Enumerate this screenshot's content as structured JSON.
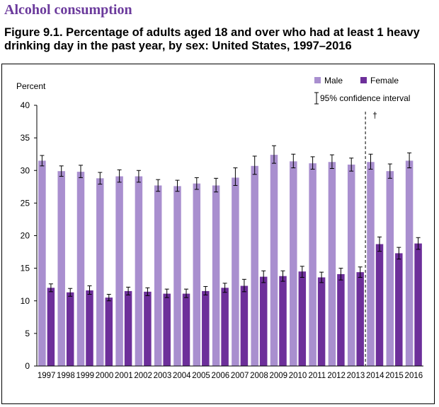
{
  "section_title": "Alcohol consumption",
  "figure_title": "Figure 9.1. Percentage of adults aged 18 and over who had at least 1 heavy drinking day in the past year, by sex: United States, 1997–2016",
  "chart_data": {
    "type": "bar",
    "ylabel": "Percent",
    "ylim": [
      0,
      40
    ],
    "yticks": [
      0,
      5,
      10,
      15,
      20,
      25,
      30,
      35,
      40
    ],
    "grid": false,
    "legend_position": "top-right",
    "categories": [
      "1997",
      "1998",
      "1999",
      "2000",
      "2001",
      "2002",
      "2003",
      "2004",
      "2005",
      "2006",
      "2007",
      "2008",
      "2009",
      "2010",
      "2011",
      "2012",
      "2013",
      "2014",
      "2015",
      "2016"
    ],
    "series": [
      {
        "name": "Male",
        "color": "#a98fcf",
        "values": [
          31.5,
          29.9,
          29.8,
          28.8,
          29.1,
          29.1,
          27.7,
          27.6,
          28.0,
          27.7,
          28.9,
          30.7,
          32.4,
          31.4,
          31.1,
          31.3,
          30.9,
          31.3,
          29.9,
          31.5
        ],
        "ci_low": [
          30.7,
          29.1,
          28.9,
          27.9,
          28.2,
          28.2,
          26.8,
          26.8,
          27.1,
          26.7,
          27.7,
          29.4,
          31.1,
          30.4,
          30.2,
          30.3,
          29.9,
          30.2,
          28.8,
          30.4
        ],
        "ci_high": [
          32.3,
          30.7,
          30.8,
          29.7,
          30.1,
          30.0,
          28.6,
          28.5,
          28.9,
          28.8,
          30.4,
          32.2,
          33.8,
          32.5,
          32.1,
          32.4,
          31.9,
          32.5,
          31.0,
          32.7
        ]
      },
      {
        "name": "Female",
        "color": "#6d2f9a",
        "values": [
          12.0,
          11.3,
          11.6,
          10.5,
          11.5,
          11.4,
          11.1,
          11.1,
          11.5,
          12.0,
          12.3,
          13.7,
          13.8,
          14.5,
          13.6,
          14.1,
          14.4,
          18.7,
          17.3,
          18.8
        ],
        "ci_low": [
          11.4,
          10.7,
          11.0,
          10.0,
          10.9,
          10.8,
          10.5,
          10.5,
          10.9,
          11.3,
          11.4,
          12.8,
          13.0,
          13.6,
          12.8,
          13.2,
          13.6,
          17.6,
          16.4,
          17.9
        ],
        "ci_high": [
          12.6,
          11.9,
          12.3,
          11.0,
          12.1,
          12.0,
          11.8,
          11.8,
          12.2,
          12.7,
          13.3,
          14.6,
          14.6,
          15.3,
          14.4,
          15.0,
          15.2,
          19.8,
          18.2,
          19.7
        ]
      }
    ],
    "ci_legend_label": "95% confidence interval",
    "break_marker": "†",
    "break_after_category": "2013"
  }
}
